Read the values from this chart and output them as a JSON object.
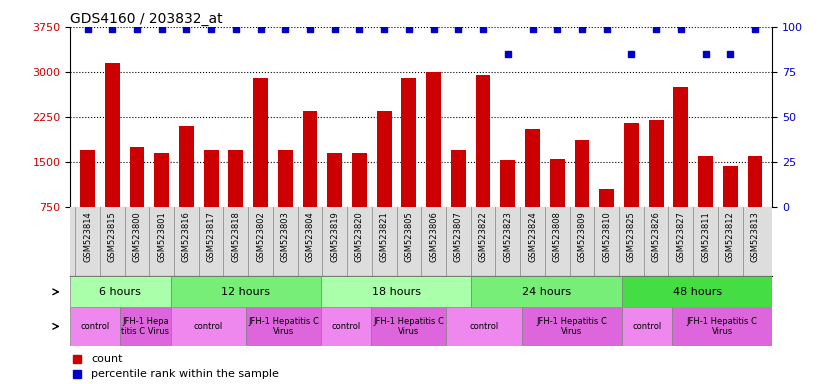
{
  "title": "GDS4160 / 203832_at",
  "categories": [
    "GSM523814",
    "GSM523815",
    "GSM523800",
    "GSM523801",
    "GSM523816",
    "GSM523817",
    "GSM523818",
    "GSM523802",
    "GSM523803",
    "GSM523804",
    "GSM523819",
    "GSM523820",
    "GSM523821",
    "GSM523805",
    "GSM523806",
    "GSM523807",
    "GSM523822",
    "GSM523823",
    "GSM523824",
    "GSM523808",
    "GSM523809",
    "GSM523810",
    "GSM523825",
    "GSM523826",
    "GSM523827",
    "GSM523811",
    "GSM523812",
    "GSM523813"
  ],
  "counts": [
    1700,
    3150,
    1750,
    1650,
    2100,
    1700,
    1700,
    2900,
    1700,
    2350,
    1650,
    1650,
    2350,
    2900,
    3000,
    1700,
    2950,
    1530,
    2050,
    1550,
    1870,
    1050,
    2150,
    2200,
    2750,
    1600,
    1430,
    1600
  ],
  "percentile_ranks": [
    99,
    99,
    99,
    99,
    99,
    99,
    99,
    99,
    99,
    99,
    99,
    99,
    99,
    99,
    99,
    99,
    99,
    85,
    99,
    99,
    99,
    99,
    85,
    99,
    99,
    85,
    85,
    99
  ],
  "ylim_left": [
    750,
    3750
  ],
  "ylim_right": [
    0,
    100
  ],
  "yticks_left": [
    750,
    1500,
    2250,
    3000,
    3750
  ],
  "yticks_right": [
    0,
    25,
    50,
    75,
    100
  ],
  "bar_color": "#cc0000",
  "dot_color": "#0000cc",
  "bg_color": "#dddddd",
  "time_groups": [
    {
      "label": "6 hours",
      "start": 0,
      "end": 4,
      "color": "#aaffaa"
    },
    {
      "label": "12 hours",
      "start": 4,
      "end": 10,
      "color": "#77ee77"
    },
    {
      "label": "18 hours",
      "start": 10,
      "end": 16,
      "color": "#aaffaa"
    },
    {
      "label": "24 hours",
      "start": 16,
      "end": 22,
      "color": "#77ee77"
    },
    {
      "label": "48 hours",
      "start": 22,
      "end": 28,
      "color": "#44dd44"
    }
  ],
  "infection_groups": [
    {
      "label": "control",
      "start": 0,
      "end": 2,
      "color": "#ee88ee"
    },
    {
      "label": "JFH-1 Hepa\ntitis C Virus",
      "start": 2,
      "end": 4,
      "color": "#dd66dd"
    },
    {
      "label": "control",
      "start": 4,
      "end": 7,
      "color": "#ee88ee"
    },
    {
      "label": "JFH-1 Hepatitis C\nVirus",
      "start": 7,
      "end": 10,
      "color": "#dd66dd"
    },
    {
      "label": "control",
      "start": 10,
      "end": 12,
      "color": "#ee88ee"
    },
    {
      "label": "JFH-1 Hepatitis C\nVirus",
      "start": 12,
      "end": 15,
      "color": "#dd66dd"
    },
    {
      "label": "control",
      "start": 15,
      "end": 18,
      "color": "#ee88ee"
    },
    {
      "label": "JFH-1 Hepatitis C\nVirus",
      "start": 18,
      "end": 22,
      "color": "#dd66dd"
    },
    {
      "label": "control",
      "start": 22,
      "end": 24,
      "color": "#ee88ee"
    },
    {
      "label": "JFH-1 Hepatitis C\nVirus",
      "start": 24,
      "end": 28,
      "color": "#dd66dd"
    }
  ],
  "legend_items": [
    {
      "label": "count",
      "color": "#cc0000"
    },
    {
      "label": "percentile rank within the sample",
      "color": "#0000cc"
    }
  ]
}
